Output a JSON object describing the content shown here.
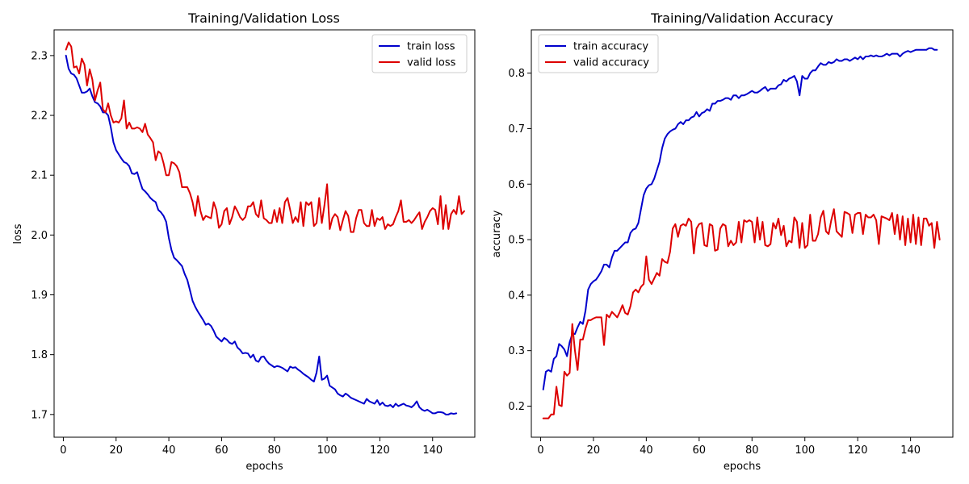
{
  "colors": {
    "train": "#0000cc",
    "valid": "#dd0000"
  },
  "chart_data": [
    {
      "type": "line",
      "title": "Training/Validation Loss",
      "xlabel": "epochs",
      "ylabel": "loss",
      "xlim": [
        -3.5,
        156
      ],
      "ylim": [
        1.662,
        2.343
      ],
      "xticks": [
        0,
        20,
        40,
        60,
        80,
        100,
        120,
        140
      ],
      "yticks": [
        1.7,
        1.8,
        1.9,
        2.0,
        2.1,
        2.2,
        2.3
      ],
      "ytick_labels": [
        "1.7",
        "1.8",
        "1.9",
        "2.0",
        "2.1",
        "2.2",
        "2.3"
      ],
      "legend_position": "upper-right",
      "grid": false,
      "series": [
        {
          "name": "train loss",
          "color": "#0000cc",
          "x_start": 1,
          "y": [
            2.3,
            2.278,
            2.27,
            2.268,
            2.262,
            2.25,
            2.238,
            2.238,
            2.24,
            2.245,
            2.232,
            2.222,
            2.22,
            2.215,
            2.205,
            2.205,
            2.2,
            2.18,
            2.155,
            2.142,
            2.135,
            2.128,
            2.122,
            2.12,
            2.115,
            2.103,
            2.102,
            2.105,
            2.09,
            2.077,
            2.073,
            2.068,
            2.062,
            2.058,
            2.055,
            2.042,
            2.038,
            2.032,
            2.022,
            1.995,
            1.975,
            1.962,
            1.958,
            1.953,
            1.948,
            1.935,
            1.925,
            1.908,
            1.89,
            1.88,
            1.872,
            1.865,
            1.858,
            1.85,
            1.852,
            1.848,
            1.84,
            1.83,
            1.826,
            1.822,
            1.828,
            1.825,
            1.82,
            1.818,
            1.822,
            1.812,
            1.808,
            1.802,
            1.803,
            1.802,
            1.795,
            1.8,
            1.79,
            1.788,
            1.796,
            1.797,
            1.79,
            1.785,
            1.782,
            1.779,
            1.781,
            1.78,
            1.778,
            1.775,
            1.772,
            1.78,
            1.778,
            1.779,
            1.775,
            1.772,
            1.768,
            1.765,
            1.762,
            1.758,
            1.755,
            1.77,
            1.797,
            1.758,
            1.76,
            1.765,
            1.748,
            1.745,
            1.742,
            1.735,
            1.732,
            1.73,
            1.735,
            1.732,
            1.728,
            1.726,
            1.724,
            1.722,
            1.72,
            1.718,
            1.726,
            1.722,
            1.72,
            1.718,
            1.724,
            1.716,
            1.72,
            1.715,
            1.714,
            1.716,
            1.712,
            1.718,
            1.714,
            1.716,
            1.718,
            1.715,
            1.714,
            1.712,
            1.716,
            1.722,
            1.712,
            1.708,
            1.706,
            1.708,
            1.705,
            1.702,
            1.702,
            1.704,
            1.704,
            1.703,
            1.7,
            1.7,
            1.702,
            1.701,
            1.702
          ]
        },
        {
          "name": "valid loss",
          "color": "#dd0000",
          "x_start": 1,
          "y": [
            2.31,
            2.322,
            2.315,
            2.28,
            2.282,
            2.27,
            2.295,
            2.285,
            2.25,
            2.277,
            2.26,
            2.225,
            2.242,
            2.255,
            2.21,
            2.205,
            2.22,
            2.2,
            2.188,
            2.19,
            2.188,
            2.195,
            2.225,
            2.178,
            2.188,
            2.178,
            2.178,
            2.18,
            2.178,
            2.172,
            2.186,
            2.168,
            2.162,
            2.155,
            2.125,
            2.14,
            2.136,
            2.12,
            2.1,
            2.1,
            2.122,
            2.12,
            2.115,
            2.105,
            2.08,
            2.08,
            2.08,
            2.07,
            2.055,
            2.032,
            2.065,
            2.04,
            2.025,
            2.032,
            2.03,
            2.028,
            2.055,
            2.042,
            2.012,
            2.018,
            2.04,
            2.045,
            2.018,
            2.03,
            2.048,
            2.04,
            2.03,
            2.025,
            2.03,
            2.048,
            2.048,
            2.055,
            2.035,
            2.03,
            2.058,
            2.028,
            2.025,
            2.02,
            2.02,
            2.042,
            2.022,
            2.045,
            2.02,
            2.055,
            2.062,
            2.042,
            2.02,
            2.03,
            2.022,
            2.055,
            2.015,
            2.055,
            2.05,
            2.055,
            2.015,
            2.02,
            2.062,
            2.02,
            2.05,
            2.085,
            2.01,
            2.028,
            2.035,
            2.03,
            2.008,
            2.025,
            2.04,
            2.032,
            2.005,
            2.005,
            2.028,
            2.042,
            2.042,
            2.02,
            2.015,
            2.015,
            2.042,
            2.015,
            2.028,
            2.025,
            2.03,
            2.01,
            2.018,
            2.015,
            2.018,
            2.03,
            2.04,
            2.058,
            2.022,
            2.022,
            2.025,
            2.02,
            2.025,
            2.032,
            2.038,
            2.01,
            2.022,
            2.03,
            2.04,
            2.045,
            2.042,
            2.018,
            2.065,
            2.01,
            2.05,
            2.01,
            2.035,
            2.042,
            2.035,
            2.065,
            2.035,
            2.04
          ]
        }
      ]
    },
    {
      "type": "line",
      "title": "Training/Validation Accuracy",
      "xlabel": "epochs",
      "ylabel": "accuracy",
      "xlim": [
        -3.5,
        156
      ],
      "ylim": [
        0.144,
        0.878
      ],
      "xticks": [
        0,
        20,
        40,
        60,
        80,
        100,
        120,
        140
      ],
      "yticks": [
        0.2,
        0.3,
        0.4,
        0.5,
        0.6,
        0.7,
        0.8
      ],
      "ytick_labels": [
        "0.2",
        "0.3",
        "0.4",
        "0.5",
        "0.6",
        "0.7",
        "0.8"
      ],
      "legend_position": "upper-left",
      "grid": false,
      "series": [
        {
          "name": "train accuracy",
          "color": "#0000cc",
          "x_start": 1,
          "y": [
            0.23,
            0.262,
            0.265,
            0.262,
            0.285,
            0.29,
            0.312,
            0.308,
            0.302,
            0.29,
            0.315,
            0.33,
            0.33,
            0.342,
            0.352,
            0.348,
            0.372,
            0.41,
            0.42,
            0.425,
            0.428,
            0.435,
            0.443,
            0.455,
            0.455,
            0.45,
            0.468,
            0.48,
            0.48,
            0.485,
            0.49,
            0.495,
            0.495,
            0.512,
            0.518,
            0.52,
            0.53,
            0.555,
            0.58,
            0.592,
            0.598,
            0.6,
            0.61,
            0.625,
            0.64,
            0.665,
            0.682,
            0.69,
            0.695,
            0.698,
            0.7,
            0.708,
            0.712,
            0.708,
            0.715,
            0.715,
            0.72,
            0.722,
            0.73,
            0.722,
            0.728,
            0.73,
            0.735,
            0.732,
            0.745,
            0.745,
            0.75,
            0.75,
            0.752,
            0.755,
            0.755,
            0.752,
            0.76,
            0.76,
            0.755,
            0.76,
            0.76,
            0.762,
            0.765,
            0.768,
            0.765,
            0.765,
            0.768,
            0.772,
            0.775,
            0.768,
            0.772,
            0.772,
            0.772,
            0.778,
            0.78,
            0.788,
            0.785,
            0.79,
            0.792,
            0.795,
            0.785,
            0.76,
            0.795,
            0.79,
            0.79,
            0.8,
            0.805,
            0.805,
            0.812,
            0.818,
            0.815,
            0.815,
            0.82,
            0.818,
            0.82,
            0.825,
            0.822,
            0.822,
            0.825,
            0.825,
            0.822,
            0.825,
            0.828,
            0.825,
            0.83,
            0.825,
            0.83,
            0.83,
            0.832,
            0.83,
            0.832,
            0.83,
            0.83,
            0.832,
            0.835,
            0.832,
            0.835,
            0.835,
            0.835,
            0.83,
            0.835,
            0.838,
            0.84,
            0.838,
            0.84,
            0.842,
            0.842,
            0.842,
            0.842,
            0.842,
            0.845,
            0.845,
            0.842,
            0.842
          ]
        },
        {
          "name": "valid accuracy",
          "color": "#dd0000",
          "x_start": 1,
          "y": [
            0.178,
            0.178,
            0.178,
            0.185,
            0.185,
            0.235,
            0.202,
            0.2,
            0.262,
            0.255,
            0.26,
            0.348,
            0.3,
            0.265,
            0.32,
            0.32,
            0.34,
            0.355,
            0.355,
            0.358,
            0.36,
            0.36,
            0.36,
            0.31,
            0.365,
            0.36,
            0.37,
            0.365,
            0.36,
            0.37,
            0.382,
            0.368,
            0.365,
            0.38,
            0.405,
            0.41,
            0.405,
            0.415,
            0.42,
            0.47,
            0.428,
            0.42,
            0.43,
            0.44,
            0.435,
            0.465,
            0.46,
            0.458,
            0.478,
            0.52,
            0.528,
            0.505,
            0.525,
            0.528,
            0.525,
            0.538,
            0.532,
            0.475,
            0.52,
            0.528,
            0.53,
            0.49,
            0.488,
            0.528,
            0.525,
            0.48,
            0.482,
            0.52,
            0.528,
            0.525,
            0.488,
            0.498,
            0.49,
            0.495,
            0.532,
            0.495,
            0.535,
            0.532,
            0.535,
            0.532,
            0.495,
            0.54,
            0.5,
            0.532,
            0.49,
            0.488,
            0.492,
            0.53,
            0.52,
            0.538,
            0.508,
            0.525,
            0.488,
            0.498,
            0.495,
            0.54,
            0.532,
            0.485,
            0.53,
            0.485,
            0.49,
            0.545,
            0.498,
            0.498,
            0.51,
            0.54,
            0.552,
            0.515,
            0.51,
            0.535,
            0.555,
            0.515,
            0.51,
            0.505,
            0.55,
            0.548,
            0.545,
            0.512,
            0.545,
            0.548,
            0.548,
            0.51,
            0.545,
            0.54,
            0.54,
            0.545,
            0.535,
            0.492,
            0.542,
            0.54,
            0.538,
            0.535,
            0.548,
            0.51,
            0.545,
            0.5,
            0.542,
            0.49,
            0.538,
            0.495,
            0.545,
            0.492,
            0.54,
            0.49,
            0.538,
            0.538,
            0.525,
            0.53,
            0.485,
            0.532,
            0.5
          ]
        }
      ]
    }
  ]
}
